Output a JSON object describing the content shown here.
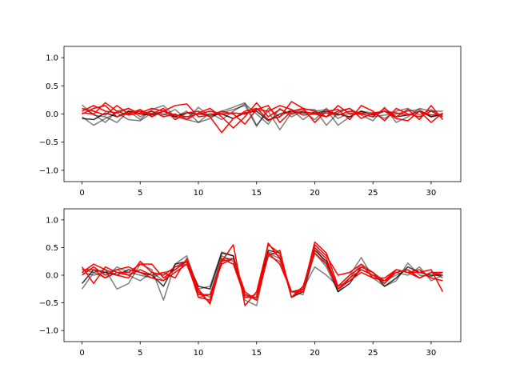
{
  "chart_data": [
    {
      "type": "line",
      "title": "",
      "xlabel": "",
      "ylabel": "",
      "xlim": [
        -1.55,
        32.55
      ],
      "ylim": [
        -1.2,
        1.2
      ],
      "xticks": [
        0,
        5,
        10,
        15,
        20,
        25,
        30
      ],
      "yticks": [
        -1.0,
        -0.5,
        0.0,
        0.5,
        1.0
      ],
      "xtick_labels": [
        "0",
        "5",
        "10",
        "15",
        "20",
        "25",
        "30"
      ],
      "ytick_labels": [
        "−1.0",
        "−0.5",
        "0.0",
        "0.5",
        "1.0"
      ],
      "grid": false,
      "x": [
        0,
        1,
        2,
        3,
        4,
        5,
        6,
        7,
        8,
        9,
        10,
        11,
        12,
        13,
        14,
        15,
        16,
        17,
        18,
        19,
        20,
        21,
        22,
        23,
        24,
        25,
        26,
        27,
        28,
        29,
        30,
        31
      ],
      "series": [
        {
          "color": "#000000",
          "opacity": 0.5,
          "values": [
            0.16,
            -0.02,
            -0.05,
            -0.15,
            0.05,
            -0.1,
            0.08,
            0.15,
            -0.05,
            -0.1,
            -0.15,
            -0.08,
            0.05,
            0.12,
            0.2,
            -0.2,
            0.05,
            -0.28,
            0.02,
            0.08,
            0.08,
            -0.2,
            0.02,
            0.1,
            -0.02,
            -0.12,
            0.12,
            -0.15,
            -0.05,
            0.1,
            0.05,
            0.05
          ]
        },
        {
          "color": "#000000",
          "opacity": 0.5,
          "values": [
            -0.05,
            -0.2,
            -0.08,
            0.02,
            -0.1,
            -0.12,
            0.02,
            -0.02,
            0.08,
            -0.1,
            0.12,
            -0.05,
            0.02,
            0.08,
            0.15,
            -0.22,
            0.1,
            -0.05,
            0.08,
            -0.1,
            0.05,
            0.08,
            -0.2,
            -0.05,
            0.05,
            0.02,
            -0.08,
            0.05,
            0.1,
            -0.02,
            0.08,
            -0.05
          ]
        },
        {
          "color": "#000000",
          "opacity": 0.5,
          "values": [
            0.1,
            0.0,
            -0.15,
            0.05,
            0.1,
            -0.05,
            0.05,
            0.0,
            -0.05,
            0.05,
            -0.15,
            0.02,
            -0.1,
            0.05,
            0.18,
            0.0,
            -0.18,
            0.1,
            -0.05,
            0.05,
            -0.1,
            0.1,
            -0.08,
            0.02,
            0.0,
            -0.05,
            -0.02,
            0.0,
            0.05,
            0.08,
            -0.05,
            -0.02
          ]
        },
        {
          "color": "#000000",
          "opacity": 0.8,
          "values": [
            -0.08,
            -0.1,
            0.02,
            -0.05,
            0.05,
            0.0,
            -0.02,
            0.05,
            -0.05,
            0.02,
            0.0,
            -0.02,
            0.0,
            -0.08,
            0.02,
            0.05,
            -0.12,
            0.0,
            0.05,
            0.02,
            0.02,
            0.05,
            0.0,
            -0.05,
            0.05,
            -0.02,
            0.05,
            -0.05,
            -0.02,
            0.05,
            -0.05,
            0.0
          ]
        },
        {
          "color": "#ff0000",
          "opacity": 1.0,
          "values": [
            0.0,
            0.1,
            0.15,
            -0.05,
            0.02,
            0.05,
            0.0,
            0.1,
            -0.1,
            0.02,
            0.05,
            -0.05,
            -0.33,
            -0.08,
            0.05,
            0.1,
            -0.1,
            -0.05,
            0.22,
            0.1,
            0.05,
            -0.05,
            0.15,
            0.0,
            0.0,
            -0.05,
            0.1,
            -0.05,
            0.08,
            -0.1,
            0.15,
            -0.1
          ]
        },
        {
          "color": "#ff0000",
          "opacity": 1.0,
          "values": [
            0.1,
            0.05,
            -0.02,
            0.15,
            0.0,
            0.08,
            -0.05,
            0.05,
            0.15,
            0.18,
            -0.05,
            -0.02,
            0.05,
            0.0,
            -0.18,
            0.08,
            0.15,
            -0.15,
            0.05,
            0.1,
            -0.15,
            0.05,
            0.08,
            -0.1,
            0.15,
            0.05,
            -0.12,
            0.1,
            0.0,
            -0.05,
            0.05,
            -0.05
          ]
        },
        {
          "color": "#ff0000",
          "opacity": 1.0,
          "values": [
            0.05,
            0.15,
            0.05,
            0.02,
            0.1,
            0.0,
            0.05,
            -0.05,
            0.0,
            -0.1,
            0.02,
            0.1,
            -0.05,
            -0.25,
            -0.05,
            0.2,
            -0.05,
            0.08,
            0.0,
            0.05,
            0.0,
            -0.05,
            0.05,
            0.1,
            -0.08,
            0.02,
            0.05,
            -0.08,
            -0.12,
            0.05,
            -0.02,
            0.0
          ]
        },
        {
          "color": "#ff0000",
          "opacity": 1.0,
          "values": [
            0.02,
            0.0,
            0.2,
            0.05,
            -0.02,
            0.02,
            0.1,
            0.05,
            -0.02,
            -0.05,
            0.0,
            0.05,
            0.0,
            0.02,
            0.0,
            0.08,
            0.05,
            0.15,
            0.08,
            -0.02,
            0.0,
            0.02,
            -0.02,
            0.05,
            0.02,
            0.0,
            0.05,
            0.02,
            -0.02,
            0.05,
            -0.15,
            0.02
          ]
        }
      ]
    },
    {
      "type": "line",
      "title": "",
      "xlabel": "",
      "ylabel": "",
      "xlim": [
        -1.55,
        32.55
      ],
      "ylim": [
        -1.2,
        1.2
      ],
      "xticks": [
        0,
        5,
        10,
        15,
        20,
        25,
        30
      ],
      "yticks": [
        -1.0,
        -0.5,
        0.0,
        0.5,
        1.0
      ],
      "xtick_labels": [
        "0",
        "5",
        "10",
        "15",
        "20",
        "25",
        "30"
      ],
      "ytick_labels": [
        "−1.0",
        "−0.5",
        "0.0",
        "0.5",
        "1.0"
      ],
      "grid": false,
      "x": [
        0,
        1,
        2,
        3,
        4,
        5,
        6,
        7,
        8,
        9,
        10,
        11,
        12,
        13,
        14,
        15,
        16,
        17,
        18,
        19,
        20,
        21,
        22,
        23,
        24,
        25,
        26,
        27,
        28,
        29,
        30,
        31
      ],
      "series": [
        {
          "color": "#000000",
          "opacity": 0.5,
          "values": [
            -0.25,
            0.05,
            0.1,
            -0.25,
            -0.15,
            0.2,
            0.1,
            -0.45,
            0.2,
            0.35,
            -0.25,
            -0.2,
            0.42,
            0.35,
            -0.4,
            -0.35,
            0.42,
            0.35,
            -0.4,
            -0.2,
            0.5,
            0.2,
            -0.2,
            0.0,
            0.32,
            -0.05,
            -0.2,
            -0.1,
            0.22,
            0.0,
            -0.02,
            0.05
          ]
        },
        {
          "color": "#000000",
          "opacity": 0.5,
          "values": [
            0.05,
            0.0,
            0.05,
            0.1,
            0.0,
            -0.1,
            0.05,
            -0.1,
            0.15,
            0.2,
            -0.3,
            -0.4,
            0.3,
            0.3,
            -0.45,
            -0.55,
            0.4,
            0.3,
            -0.3,
            -0.25,
            0.15,
            0.0,
            -0.2,
            -0.1,
            0.1,
            0.0,
            -0.15,
            0.05,
            0.0,
            0.15,
            -0.1,
            0.0
          ]
        },
        {
          "color": "#000000",
          "opacity": 0.5,
          "values": [
            0.1,
            0.05,
            -0.05,
            0.15,
            0.05,
            0.0,
            -0.05,
            0.05,
            0.1,
            0.25,
            -0.4,
            -0.35,
            0.35,
            0.25,
            -0.35,
            -0.4,
            0.35,
            0.25,
            -0.3,
            -0.35,
            0.4,
            0.15,
            -0.3,
            -0.05,
            0.2,
            0.05,
            -0.1,
            0.0,
            0.1,
            -0.05,
            0.05,
            -0.05
          ]
        },
        {
          "color": "#000000",
          "opacity": 0.8,
          "values": [
            -0.15,
            0.1,
            0.05,
            0.0,
            0.1,
            0.05,
            0.0,
            -0.2,
            0.2,
            0.25,
            -0.2,
            -0.25,
            0.4,
            0.35,
            -0.4,
            -0.4,
            0.45,
            0.4,
            -0.4,
            -0.3,
            0.45,
            0.25,
            -0.3,
            -0.15,
            0.15,
            0.05,
            -0.2,
            -0.05,
            0.15,
            0.05,
            0.0,
            0.0
          ]
        },
        {
          "color": "#ff0000",
          "opacity": 1.0,
          "values": [
            0.15,
            -0.15,
            0.15,
            0.05,
            0.05,
            0.2,
            0.2,
            -0.05,
            0.1,
            0.25,
            -0.3,
            -0.5,
            0.25,
            0.55,
            -0.55,
            -0.3,
            0.55,
            0.4,
            -0.4,
            -0.25,
            0.6,
            0.4,
            -0.2,
            0.0,
            0.15,
            0.05,
            -0.15,
            0.1,
            0.05,
            0.05,
            0.1,
            -0.3
          ]
        },
        {
          "color": "#ff0000",
          "opacity": 1.0,
          "values": [
            0.05,
            0.2,
            0.1,
            0.0,
            -0.05,
            0.25,
            0.05,
            0.0,
            0.15,
            0.25,
            -0.4,
            -0.45,
            0.3,
            0.2,
            -0.4,
            -0.4,
            0.58,
            0.3,
            -0.3,
            -0.25,
            0.55,
            0.35,
            0.0,
            0.05,
            0.2,
            -0.05,
            -0.05,
            0.1,
            0.05,
            -0.05,
            0.05,
            0.05
          ]
        },
        {
          "color": "#ff0000",
          "opacity": 1.0,
          "values": [
            0.1,
            0.1,
            -0.05,
            0.05,
            0.0,
            0.1,
            0.0,
            0.05,
            -0.05,
            0.3,
            -0.25,
            -0.52,
            0.25,
            0.3,
            -0.35,
            -0.45,
            0.35,
            0.45,
            -0.4,
            -0.2,
            0.4,
            0.2,
            -0.25,
            -0.05,
            0.1,
            0.0,
            -0.1,
            0.05,
            0.1,
            -0.05,
            0.05,
            0.0
          ]
        },
        {
          "color": "#ff0000",
          "opacity": 1.0,
          "values": [
            0.0,
            0.15,
            0.0,
            0.1,
            0.15,
            0.05,
            -0.05,
            -0.1,
            0.05,
            0.2,
            -0.35,
            -0.35,
            0.2,
            0.3,
            -0.3,
            -0.45,
            0.4,
            0.2,
            -0.3,
            -0.3,
            0.5,
            0.3,
            -0.25,
            -0.1,
            0.05,
            -0.05,
            -0.1,
            0.1,
            0.05,
            0.1,
            -0.05,
            -0.1
          ]
        }
      ]
    }
  ]
}
